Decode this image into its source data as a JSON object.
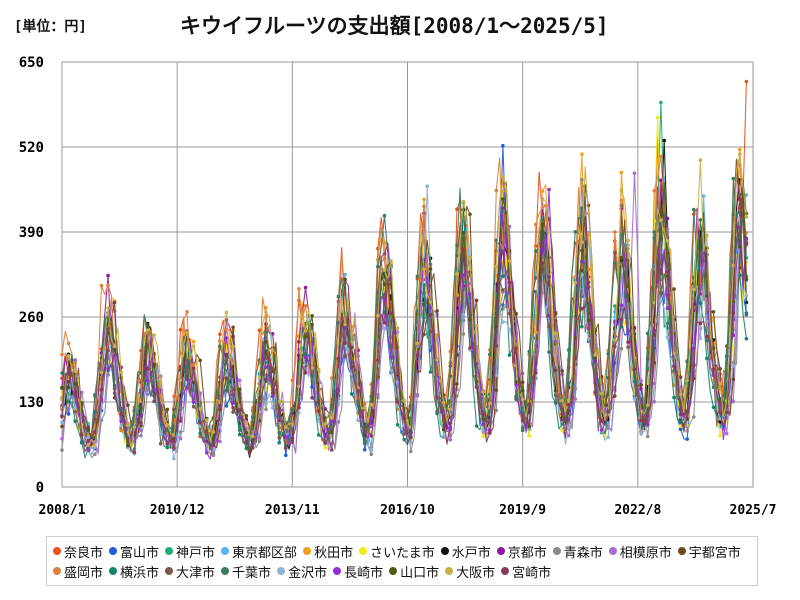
{
  "header": {
    "unit": "[単位：円]",
    "title": "キウイフルーツの支出額[2008/1～2025/5]"
  },
  "chart_data": {
    "type": "line",
    "x_range": [
      "2008/1",
      "2025/7"
    ],
    "x_ticks": [
      "2008/1",
      "2010/12",
      "2013/11",
      "2016/10",
      "2019/9",
      "2022/8",
      "2025/7"
    ],
    "x_tick_months": [
      0,
      35,
      70,
      105,
      140,
      175,
      210
    ],
    "ylim": [
      0,
      650
    ],
    "y_ticks": [
      0,
      130,
      260,
      390,
      520,
      650
    ],
    "grid": true,
    "legend": "bottom",
    "months": 209,
    "yearly_peaks": [
      {
        "month": 2,
        "value": 175
      },
      {
        "month": 14,
        "value": 245
      },
      {
        "month": 26,
        "value": 210
      },
      {
        "month": 38,
        "value": 195
      },
      {
        "month": 50,
        "value": 195
      },
      {
        "month": 62,
        "value": 200
      },
      {
        "month": 74,
        "value": 230
      },
      {
        "month": 86,
        "value": 260
      },
      {
        "month": 98,
        "value": 300
      },
      {
        "month": 110,
        "value": 320
      },
      {
        "month": 122,
        "value": 340
      },
      {
        "month": 134,
        "value": 360
      },
      {
        "month": 146,
        "value": 350
      },
      {
        "month": 158,
        "value": 350
      },
      {
        "month": 170,
        "value": 330
      },
      {
        "month": 182,
        "value": 380
      },
      {
        "month": 194,
        "value": 340
      },
      {
        "month": 206,
        "value": 400
      }
    ],
    "series": [
      {
        "name": "奈良市",
        "color": "#e8521e",
        "max": {
          "month": 208,
          "value": 620
        }
      },
      {
        "name": "富山市",
        "color": "#1f5fd6",
        "max": {
          "month": 134,
          "value": 522
        }
      },
      {
        "name": "神戸市",
        "color": "#1fae6f",
        "max": {
          "month": 182,
          "value": 588
        }
      },
      {
        "name": "東京都区部",
        "color": "#55b3ee",
        "max": {
          "month": 195,
          "value": 445
        }
      },
      {
        "name": "秋田市",
        "color": "#f0a020",
        "max": {
          "month": 110,
          "value": 440
        }
      },
      {
        "name": "さいたま市",
        "color": "#f2ea10",
        "max": {
          "month": 181,
          "value": 565
        }
      },
      {
        "name": "水戸市",
        "color": "#111111",
        "max": {
          "month": 183,
          "value": 530
        }
      },
      {
        "name": "京都市",
        "color": "#8b1a9c",
        "max": {
          "month": 146,
          "value": 440
        }
      },
      {
        "name": "青森市",
        "color": "#8a8a8a",
        "max": {
          "month": 158,
          "value": 470
        }
      },
      {
        "name": "相模原市",
        "color": "#a86dd0",
        "max": {
          "month": 174,
          "value": 480
        }
      },
      {
        "name": "宇都宮市",
        "color": "#6e4a1e",
        "max": {
          "month": 159,
          "value": 460
        }
      },
      {
        "name": "盛岡市",
        "color": "#e0803a",
        "max": {
          "month": 147,
          "value": 430
        }
      },
      {
        "name": "横浜市",
        "color": "#15866a",
        "max": {
          "month": 122,
          "value": 435
        }
      },
      {
        "name": "大津市",
        "color": "#7a5a4a",
        "max": {
          "month": 170,
          "value": 430
        }
      },
      {
        "name": "千葉市",
        "color": "#3a7a5e",
        "max": {
          "month": 98,
          "value": 415
        }
      },
      {
        "name": "金沢市",
        "color": "#8fb2d6",
        "max": {
          "month": 111,
          "value": 460
        }
      },
      {
        "name": "長崎市",
        "color": "#9030d8",
        "max": {
          "month": 148,
          "value": 455
        }
      },
      {
        "name": "山口市",
        "color": "#4e5a18",
        "max": {
          "month": 135,
          "value": 420
        }
      },
      {
        "name": "大阪市",
        "color": "#c8b048",
        "max": {
          "month": 194,
          "value": 500
        }
      },
      {
        "name": "宮崎市",
        "color": "#8c3a5a",
        "max": {
          "month": 206,
          "value": 440
        }
      }
    ]
  }
}
